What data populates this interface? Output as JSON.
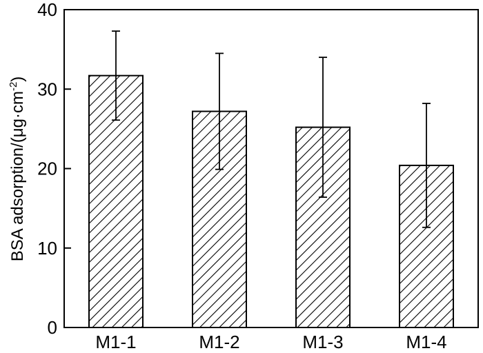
{
  "chart_data": {
    "type": "bar",
    "title": "",
    "xlabel": "",
    "ylabel": "BSA adsorption/(μg·cm",
    "ylabel_superscript": "-2",
    "ylabel_suffix": ")",
    "categories": [
      "M1-1",
      "M1-2",
      "M1-3",
      "M1-4"
    ],
    "values": [
      31.7,
      27.2,
      25.2,
      20.4
    ],
    "errors": [
      5.6,
      7.3,
      8.8,
      7.8
    ],
    "ylim": [
      0,
      40
    ],
    "yticks": [
      0,
      10,
      20,
      30,
      40
    ],
    "grid": false,
    "bar_fill": "diagonal hatch",
    "colors": {
      "bar_edge": "#000000",
      "hatch": "#000000",
      "background": "#ffffff"
    }
  }
}
